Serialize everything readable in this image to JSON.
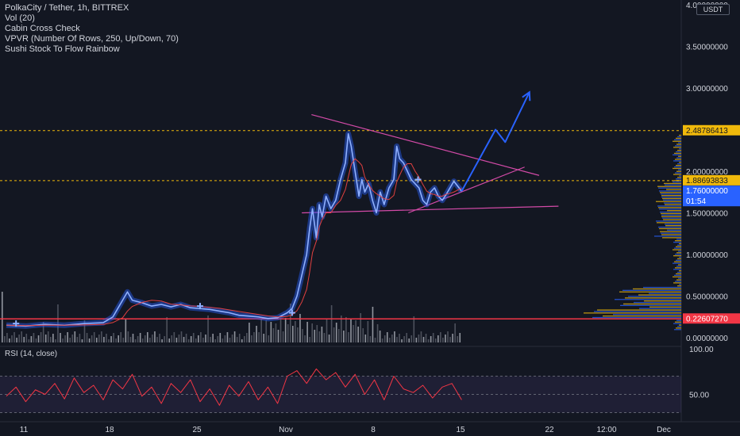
{
  "legend": {
    "symbol": "PolkaCity / Tether, 1h, BITTREX",
    "indicators": [
      "Vol (20)",
      "Cabin Cross Check",
      "VPVR (Number Of Rows, 250, Up/Down, 70)",
      "Sushi Stock To Flow Rainbow"
    ]
  },
  "currency_badge": "USDT",
  "rsi_title": "RSI (14, close)",
  "chart_data": [
    {
      "type": "line",
      "title": "",
      "ylim": [
        0,
        4.0
      ],
      "y_scale": "linear",
      "y_ticks": [
        {
          "value": 4.0,
          "label": "4.00000000"
        },
        {
          "value": 3.5,
          "label": "3.50000000"
        },
        {
          "value": 3.0,
          "label": "3.00000000"
        },
        {
          "value": 2.0,
          "label": "2.00000000"
        },
        {
          "value": 1.5,
          "label": "1.50000000"
        },
        {
          "value": 1.0,
          "label": "1.00000000"
        },
        {
          "value": 0.5,
          "label": "0.50000000"
        },
        {
          "value": 0.0,
          "label": "0.00000000"
        }
      ],
      "x_ticks": [
        "11",
        "18",
        "25",
        "Nov",
        "8",
        "15",
        "22",
        "12:00",
        "Dec"
      ],
      "price_labels": [
        {
          "value": 2.48786413,
          "label": "2.48786413",
          "color": "#f0b90b",
          "text_color": "#131722"
        },
        {
          "value": 1.88693833,
          "label": "1.88693833",
          "color": "#f0b90b",
          "text_color": "#131722"
        },
        {
          "value": 1.76,
          "label": "1.76000000",
          "sublabel": "01:54",
          "color": "#2962ff",
          "text_color": "#ffffff"
        },
        {
          "value": 0.2260727,
          "label": "0.22607270",
          "color": "#f23645",
          "text_color": "#ffffff"
        }
      ],
      "horizontal_lines": [
        {
          "value": 2.48786413,
          "style": "dashed",
          "color": "#f0b90b"
        },
        {
          "value": 1.88693833,
          "style": "dashed",
          "color": "#f0b90b"
        },
        {
          "value": 0.2260727,
          "style": "solid",
          "color": "#f23645"
        }
      ],
      "price_series": [
        [
          0,
          0.15
        ],
        [
          2,
          0.14
        ],
        [
          4,
          0.16
        ],
        [
          6,
          0.15
        ],
        [
          8,
          0.17
        ],
        [
          10,
          0.18
        ],
        [
          11,
          0.25
        ],
        [
          12,
          0.45
        ],
        [
          12.5,
          0.55
        ],
        [
          13,
          0.45
        ],
        [
          14,
          0.42
        ],
        [
          15,
          0.38
        ],
        [
          16,
          0.4
        ],
        [
          17,
          0.37
        ],
        [
          18,
          0.4
        ],
        [
          19,
          0.36
        ],
        [
          20,
          0.35
        ],
        [
          21,
          0.34
        ],
        [
          22,
          0.32
        ],
        [
          23,
          0.3
        ],
        [
          24,
          0.27
        ],
        [
          25,
          0.26
        ],
        [
          26,
          0.25
        ],
        [
          27,
          0.23
        ],
        [
          28,
          0.24
        ],
        [
          29,
          0.3
        ],
        [
          29.5,
          0.35
        ],
        [
          30,
          0.5
        ],
        [
          30.5,
          0.75
        ],
        [
          31,
          1.0
        ],
        [
          31.3,
          1.3
        ],
        [
          31.6,
          1.55
        ],
        [
          32,
          1.2
        ],
        [
          32.3,
          1.6
        ],
        [
          32.6,
          1.45
        ],
        [
          33,
          1.7
        ],
        [
          33.5,
          1.55
        ],
        [
          34,
          1.65
        ],
        [
          34.5,
          1.9
        ],
        [
          35,
          2.1
        ],
        [
          35.3,
          2.45
        ],
        [
          35.6,
          2.3
        ],
        [
          36,
          2.0
        ],
        [
          36.4,
          1.7
        ],
        [
          36.7,
          1.9
        ],
        [
          37,
          1.75
        ],
        [
          37.4,
          1.85
        ],
        [
          37.8,
          1.65
        ],
        [
          38.2,
          1.5
        ],
        [
          38.6,
          1.75
        ],
        [
          39,
          1.6
        ],
        [
          39.5,
          1.8
        ],
        [
          40,
          1.9
        ],
        [
          40.3,
          2.3
        ],
        [
          40.6,
          2.15
        ],
        [
          41,
          2.1
        ],
        [
          41.4,
          2.0
        ],
        [
          41.8,
          1.9
        ],
        [
          42.2,
          1.85
        ],
        [
          42.6,
          1.8
        ],
        [
          43,
          1.65
        ],
        [
          43.4,
          1.6
        ],
        [
          43.8,
          1.75
        ],
        [
          44.2,
          1.8
        ],
        [
          44.6,
          1.7
        ],
        [
          45,
          1.65
        ],
        [
          45.4,
          1.72
        ],
        [
          45.8,
          1.8
        ],
        [
          46.2,
          1.88
        ],
        [
          46.6,
          1.82
        ],
        [
          47,
          1.76
        ]
      ],
      "projection_series": [
        [
          47,
          1.76
        ],
        [
          50.5,
          2.5
        ],
        [
          51.5,
          2.35
        ],
        [
          54,
          2.95
        ]
      ],
      "trend_lines": [
        {
          "from": [
            31.5,
            2.68
          ],
          "to": [
            55,
            1.95
          ],
          "color": "#d24aa7"
        },
        {
          "from": [
            30.5,
            1.5
          ],
          "to": [
            57,
            1.58
          ],
          "color": "#d24aa7"
        },
        {
          "from": [
            41.5,
            1.5
          ],
          "to": [
            53.5,
            2.05
          ],
          "color": "#d24aa7"
        }
      ],
      "markers": [
        [
          1,
          0.17
        ],
        [
          20,
          0.38
        ],
        [
          29.5,
          0.3
        ],
        [
          42.5,
          1.9
        ]
      ],
      "x_range": [
        0,
        66
      ]
    },
    {
      "type": "line",
      "title": "",
      "ylim": [
        20,
        100
      ],
      "y_ticks": [
        {
          "value": 100,
          "label": "100.00"
        },
        {
          "value": 50,
          "label": "50.00"
        }
      ],
      "band": {
        "upper": 70,
        "lower": 30
      },
      "rsi_series": [
        [
          0,
          48
        ],
        [
          1,
          58
        ],
        [
          2,
          42
        ],
        [
          3,
          55
        ],
        [
          4,
          50
        ],
        [
          5,
          62
        ],
        [
          6,
          45
        ],
        [
          7,
          68
        ],
        [
          8,
          52
        ],
        [
          9,
          60
        ],
        [
          10,
          44
        ],
        [
          11,
          66
        ],
        [
          12,
          56
        ],
        [
          13,
          72
        ],
        [
          14,
          48
        ],
        [
          15,
          58
        ],
        [
          16,
          40
        ],
        [
          17,
          62
        ],
        [
          18,
          52
        ],
        [
          19,
          66
        ],
        [
          20,
          42
        ],
        [
          21,
          56
        ],
        [
          22,
          38
        ],
        [
          23,
          60
        ],
        [
          24,
          48
        ],
        [
          25,
          64
        ],
        [
          26,
          44
        ],
        [
          27,
          58
        ],
        [
          28,
          40
        ],
        [
          29,
          70
        ],
        [
          30,
          76
        ],
        [
          31,
          62
        ],
        [
          32,
          78
        ],
        [
          33,
          66
        ],
        [
          34,
          74
        ],
        [
          35,
          58
        ],
        [
          36,
          72
        ],
        [
          37,
          50
        ],
        [
          38,
          66
        ],
        [
          39,
          44
        ],
        [
          40,
          70
        ],
        [
          41,
          56
        ],
        [
          42,
          52
        ],
        [
          43,
          60
        ],
        [
          44,
          46
        ],
        [
          45,
          58
        ],
        [
          46,
          62
        ],
        [
          47,
          44
        ]
      ],
      "x_range": [
        0,
        66
      ]
    }
  ]
}
